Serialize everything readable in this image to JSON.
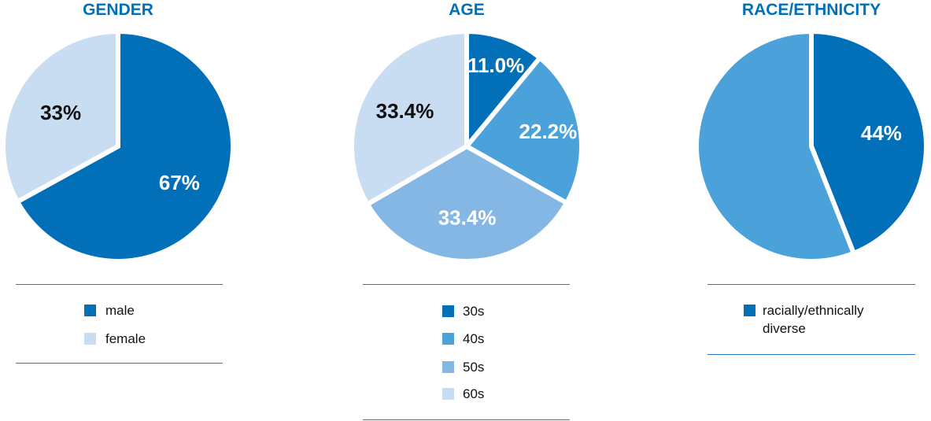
{
  "colors": {
    "dark": "#0270b8",
    "mid": "#4ba2da",
    "light": "#85b7e4",
    "pale": "#c8ddf2",
    "title": "#0270b8"
  },
  "chart_data": [
    {
      "type": "pie",
      "title": "GENDER",
      "slices": [
        {
          "name": "male",
          "value": 67,
          "label": "67%",
          "color": "#0270b8",
          "label_color": "#ffffff"
        },
        {
          "name": "female",
          "value": 33,
          "label": "33%",
          "color": "#c8ddf2",
          "label_color": "#111111"
        }
      ],
      "legend": [
        {
          "label": "male",
          "color": "#0270b8"
        },
        {
          "label": "female",
          "color": "#c8ddf2"
        }
      ]
    },
    {
      "type": "pie",
      "title": "AGE",
      "slices": [
        {
          "name": "30s",
          "value": 11.0,
          "label": "11.0%",
          "color": "#0270b8",
          "label_color": "#ffffff"
        },
        {
          "name": "40s",
          "value": 22.2,
          "label": "22.2%",
          "color": "#4ba2da",
          "label_color": "#ffffff"
        },
        {
          "name": "50s",
          "value": 33.4,
          "label": "33.4%",
          "color": "#85b7e4",
          "label_color": "#ffffff"
        },
        {
          "name": "60s",
          "value": 33.4,
          "label": "33.4%",
          "color": "#c8ddf2",
          "label_color": "#111111"
        }
      ],
      "legend": [
        {
          "label": "30s",
          "color": "#0270b8"
        },
        {
          "label": "40s",
          "color": "#4ba2da"
        },
        {
          "label": "50s",
          "color": "#85b7e4"
        },
        {
          "label": "60s",
          "color": "#c8ddf2"
        }
      ]
    },
    {
      "type": "pie",
      "title": "RACE/ETHNICITY",
      "slices": [
        {
          "name": "racially/ethnically diverse",
          "value": 44,
          "label": "44%",
          "color": "#0270b8",
          "label_color": "#ffffff"
        },
        {
          "name": "",
          "value": 56,
          "label": "",
          "color": "#4ba2da",
          "label_color": "#ffffff"
        }
      ],
      "legend": [
        {
          "label": "racially/ethnically diverse",
          "label_lines": [
            "racially/ethnically",
            "diverse"
          ],
          "color": "#0270b8"
        }
      ]
    }
  ]
}
